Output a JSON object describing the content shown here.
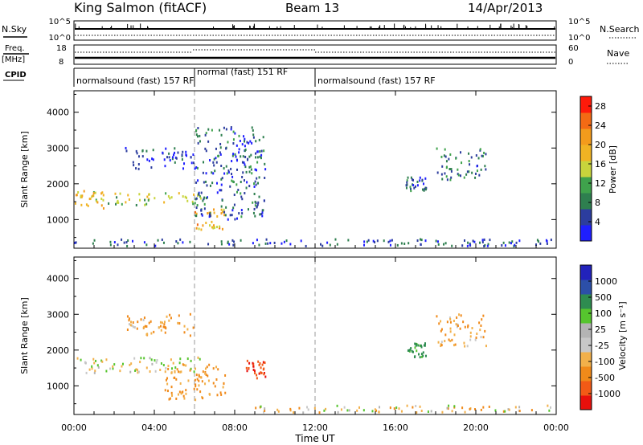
{
  "header": {
    "station": "King Salmon (fitACF)",
    "beam": "Beam 13",
    "date": "14/Apr/2013"
  },
  "meta_panels": {
    "nsky_label": "N.Sky",
    "nsky_ticks": [
      "10^5",
      "10^0"
    ],
    "nsearch_label": "N.Search",
    "nsearch_ticks": [
      "10^5",
      "10^0"
    ],
    "freq_label": "Freq.",
    "freq_unit": "[MHz]",
    "freq_ticks": [
      "18",
      "8"
    ],
    "nave_label": "Nave",
    "nave_ticks": [
      "60",
      "0"
    ],
    "cpid_label": "CPID",
    "cpid_segments": [
      {
        "start_hour": 0,
        "end_hour": 6,
        "label": "normalsound (fast) 157 RF"
      },
      {
        "start_hour": 6,
        "end_hour": 12,
        "label": "normal (fast) 151 RF"
      },
      {
        "start_hour": 12,
        "end_hour": 24,
        "label": "normalsound (fast) 157 RF"
      }
    ]
  },
  "x_axis": {
    "title": "Time UT",
    "ticks": [
      "00:00",
      "04:00",
      "08:00",
      "12:00",
      "16:00",
      "20:00",
      "00:00"
    ]
  },
  "colors": {
    "power_scale": [
      "#1f1fff",
      "#2c3d9e",
      "#2e7f4f",
      "#3fa24c",
      "#c8d43c",
      "#f0b323",
      "#f39b1c",
      "#f36a14",
      "#ff1a0a"
    ],
    "velocity_scale": [
      "#e8100c",
      "#f25a16",
      "#f08a1a",
      "#f2b04a",
      "#c8c8c8",
      "#b4b4b4",
      "#56c52e",
      "#2e8c50",
      "#2c4fa8",
      "#2222bb"
    ],
    "cpid_divider": "#999999"
  },
  "chart_data": [
    {
      "type": "heatmap",
      "panel": "power",
      "ylabel": "Slant Range [km]",
      "yticks": [
        "4000",
        "3000",
        "2000",
        "1000"
      ],
      "ylim": [
        200,
        4600
      ],
      "xlim_hours": [
        0,
        24
      ],
      "xlabel": "Time UT",
      "colorbar_label": "Power [dB]",
      "colorbar_ticks": [
        "28",
        "24",
        "20",
        "16",
        "12",
        "8",
        "4"
      ],
      "colorbar_range": [
        0,
        30
      ],
      "echo_regions": [
        {
          "start_hour": 0.0,
          "end_hour": 1.5,
          "range_min_km": 1300,
          "range_max_km": 1800,
          "typical_value": 18
        },
        {
          "start_hour": 1.5,
          "end_hour": 6.5,
          "range_min_km": 1400,
          "range_max_km": 1750,
          "typical_value": 14
        },
        {
          "start_hour": 6.0,
          "end_hour": 7.5,
          "range_min_km": 700,
          "range_max_km": 1300,
          "typical_value": 20
        },
        {
          "start_hour": 2.5,
          "end_hour": 6.0,
          "range_min_km": 2400,
          "range_max_km": 3000,
          "typical_value": 4
        },
        {
          "start_hour": 6.0,
          "end_hour": 9.5,
          "range_min_km": 1000,
          "range_max_km": 3600,
          "typical_value": 6
        },
        {
          "start_hour": 16.5,
          "end_hour": 17.5,
          "range_min_km": 1800,
          "range_max_km": 2200,
          "typical_value": 6
        },
        {
          "start_hour": 18.0,
          "end_hour": 20.5,
          "range_min_km": 2100,
          "range_max_km": 3000,
          "typical_value": 8
        },
        {
          "start_hour": 0.0,
          "end_hour": 24.0,
          "range_min_km": 250,
          "range_max_km": 450,
          "typical_value": 5
        }
      ]
    },
    {
      "type": "heatmap",
      "panel": "velocity",
      "ylabel": "Slant Range [km]",
      "yticks": [
        "4000",
        "3000",
        "2000",
        "1000"
      ],
      "ylim": [
        200,
        4600
      ],
      "xlim_hours": [
        0,
        24
      ],
      "xlabel": "Time UT",
      "colorbar_label": "Velocity [m s⁻¹]",
      "colorbar_ticks": [
        "1000",
        "500",
        "100",
        "25",
        "-25",
        "-100",
        "-500",
        "-1000"
      ],
      "echo_regions": [
        {
          "start_hour": 0.0,
          "end_hour": 6.5,
          "range_min_km": 1350,
          "range_max_km": 1800,
          "typical_value": 0
        },
        {
          "start_hour": 4.5,
          "end_hour": 7.5,
          "range_min_km": 600,
          "range_max_km": 1600,
          "typical_value": -150
        },
        {
          "start_hour": 8.5,
          "end_hour": 9.5,
          "range_min_km": 1200,
          "range_max_km": 1700,
          "typical_value": -1000
        },
        {
          "start_hour": 2.5,
          "end_hour": 6.0,
          "range_min_km": 2400,
          "range_max_km": 3000,
          "typical_value": -100
        },
        {
          "start_hour": 16.5,
          "end_hour": 17.5,
          "range_min_km": 1800,
          "range_max_km": 2200,
          "typical_value": 150
        },
        {
          "start_hour": 18.0,
          "end_hour": 20.5,
          "range_min_km": 2100,
          "range_max_km": 3000,
          "typical_value": -100
        },
        {
          "start_hour": 9.0,
          "end_hour": 24.0,
          "range_min_km": 250,
          "range_max_km": 450,
          "typical_value": -50
        }
      ]
    }
  ]
}
